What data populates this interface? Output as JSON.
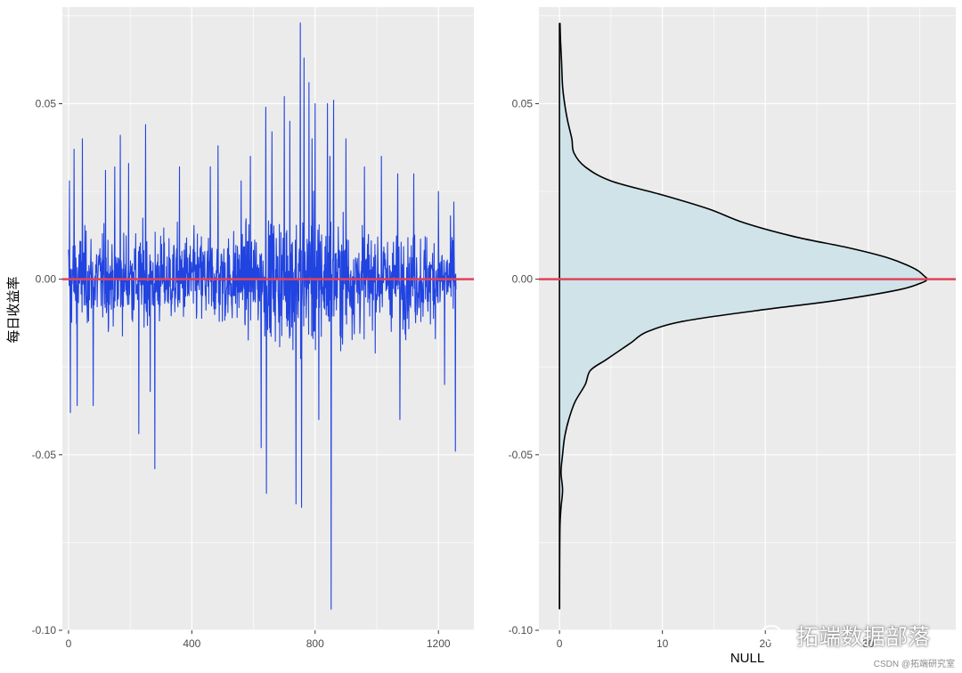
{
  "colors": {
    "panel_bg": "#ebebeb",
    "grid": "#ffffff",
    "series": "#2143e0",
    "reference_line": "#e0435a",
    "density_fill": "#cfe3e8",
    "density_line": "#000000"
  },
  "ylabel": "每日收益率",
  "watermark": "拓端数据部落",
  "credit": "CSDN @拓端研究室",
  "chart_data": [
    {
      "type": "line",
      "xlabel": "",
      "ylabel": "每日收益率",
      "xlim": [
        -20,
        1315
      ],
      "ylim": [
        -0.1,
        0.0775
      ],
      "x_ticks": [
        0,
        400,
        800,
        1200
      ],
      "x_tick_labels": [
        "0",
        "400",
        "800",
        "1200"
      ],
      "y_ticks": [
        -0.1,
        -0.05,
        0.0,
        0.05
      ],
      "y_tick_labels": [
        "-0.10",
        "-0.05",
        "0.00",
        "0.05"
      ],
      "grid": true,
      "hline": 0.0,
      "n_points": 1258,
      "x_range": [
        0,
        1257
      ],
      "notable_points": [
        {
          "x": 3,
          "y": 0.028
        },
        {
          "x": 6,
          "y": -0.038
        },
        {
          "x": 18,
          "y": 0.037
        },
        {
          "x": 28,
          "y": -0.036
        },
        {
          "x": 45,
          "y": 0.04
        },
        {
          "x": 80,
          "y": -0.036
        },
        {
          "x": 120,
          "y": 0.031
        },
        {
          "x": 150,
          "y": 0.032
        },
        {
          "x": 168,
          "y": 0.041
        },
        {
          "x": 195,
          "y": 0.033
        },
        {
          "x": 228,
          "y": -0.044
        },
        {
          "x": 250,
          "y": 0.044
        },
        {
          "x": 265,
          "y": -0.032
        },
        {
          "x": 280,
          "y": -0.054
        },
        {
          "x": 360,
          "y": 0.032
        },
        {
          "x": 460,
          "y": 0.032
        },
        {
          "x": 485,
          "y": 0.038
        },
        {
          "x": 560,
          "y": 0.028
        },
        {
          "x": 590,
          "y": 0.035
        },
        {
          "x": 625,
          "y": -0.048
        },
        {
          "x": 640,
          "y": 0.049
        },
        {
          "x": 642,
          "y": -0.061
        },
        {
          "x": 660,
          "y": 0.042
        },
        {
          "x": 700,
          "y": 0.052
        },
        {
          "x": 718,
          "y": 0.045
        },
        {
          "x": 738,
          "y": -0.064
        },
        {
          "x": 752,
          "y": 0.073
        },
        {
          "x": 756,
          "y": -0.065
        },
        {
          "x": 764,
          "y": 0.063
        },
        {
          "x": 780,
          "y": 0.056
        },
        {
          "x": 790,
          "y": 0.04
        },
        {
          "x": 800,
          "y": 0.05
        },
        {
          "x": 812,
          "y": -0.04
        },
        {
          "x": 840,
          "y": 0.05
        },
        {
          "x": 848,
          "y": 0.035
        },
        {
          "x": 852,
          "y": -0.094
        },
        {
          "x": 860,
          "y": 0.051
        },
        {
          "x": 900,
          "y": 0.04
        },
        {
          "x": 960,
          "y": 0.032
        },
        {
          "x": 1015,
          "y": 0.035
        },
        {
          "x": 1068,
          "y": 0.03
        },
        {
          "x": 1075,
          "y": -0.04
        },
        {
          "x": 1120,
          "y": 0.03
        },
        {
          "x": 1200,
          "y": 0.025
        },
        {
          "x": 1220,
          "y": -0.03
        },
        {
          "x": 1250,
          "y": 0.022
        },
        {
          "x": 1255,
          "y": -0.049
        }
      ]
    },
    {
      "type": "area",
      "xlabel": "NULL",
      "ylabel": "",
      "xlim": [
        -2,
        38.5
      ],
      "ylim": [
        -0.1,
        0.0775
      ],
      "x_ticks": [
        0,
        10,
        20,
        30
      ],
      "x_tick_labels": [
        "0",
        "10",
        "20",
        "30"
      ],
      "y_ticks": [
        -0.1,
        -0.05,
        0.0,
        0.05
      ],
      "y_tick_labels": [
        "-0.10",
        "-0.05",
        "0.00",
        "0.05"
      ],
      "grid": true,
      "hline": 0.0,
      "orientation": "horizontal density",
      "y_values": [
        0.073,
        0.068,
        0.062,
        0.055,
        0.05,
        0.045,
        0.04,
        0.036,
        0.032,
        0.028,
        0.024,
        0.02,
        0.016,
        0.012,
        0.009,
        0.006,
        0.003,
        0.001,
        0.0,
        -0.001,
        -0.003,
        -0.006,
        -0.009,
        -0.012,
        -0.015,
        -0.018,
        -0.02,
        -0.023,
        -0.026,
        -0.03,
        -0.035,
        -0.04,
        -0.045,
        -0.05,
        -0.055,
        -0.06,
        -0.065,
        -0.07,
        -0.08,
        -0.09,
        -0.094
      ],
      "density": [
        0.05,
        0.1,
        0.2,
        0.3,
        0.5,
        0.8,
        1.2,
        1.4,
        2.5,
        5.0,
        10.0,
        14.5,
        18.0,
        23.0,
        28.0,
        32.0,
        34.5,
        35.4,
        35.7,
        35.2,
        33.0,
        27.0,
        19.0,
        12.0,
        8.5,
        7.0,
        6.0,
        4.5,
        3.0,
        2.5,
        1.5,
        0.9,
        0.5,
        0.3,
        0.15,
        0.3,
        0.15,
        0.05,
        0.02,
        0.01,
        0.01
      ]
    }
  ]
}
